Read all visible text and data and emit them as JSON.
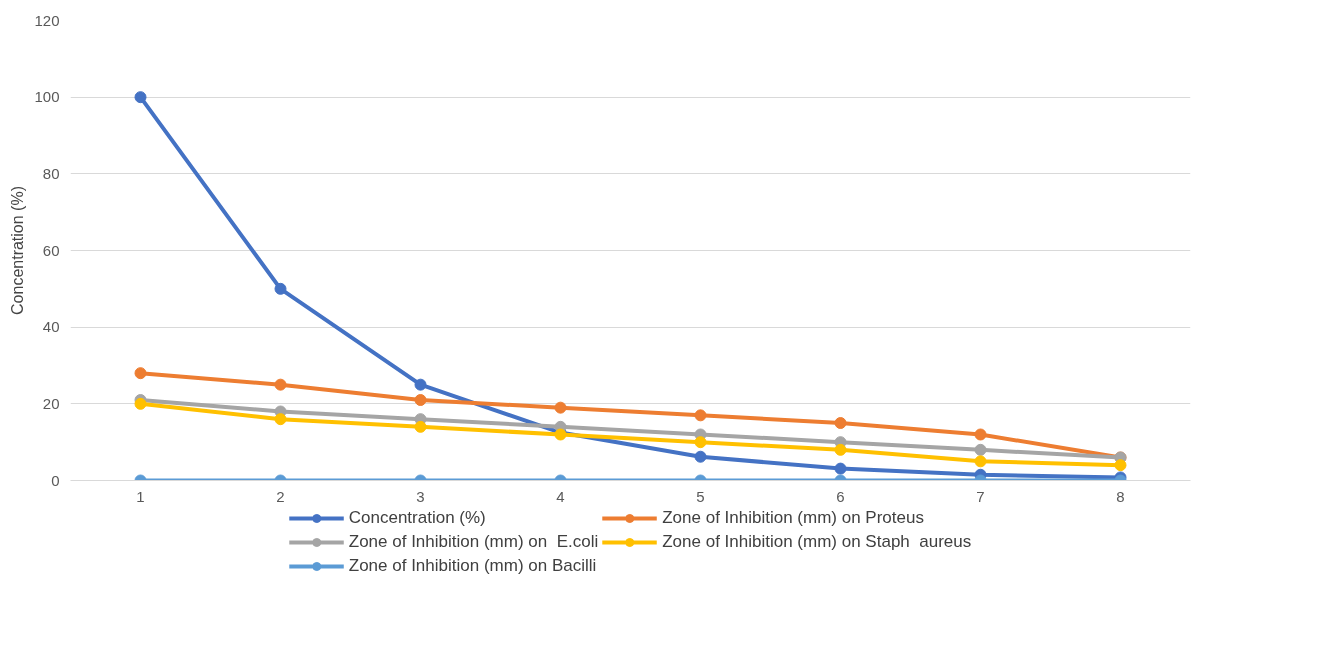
{
  "chart_data": {
    "type": "line",
    "ylabel": "Concentration (%)",
    "categories": [
      "1",
      "2",
      "3",
      "4",
      "5",
      "6",
      "7",
      "8"
    ],
    "series": [
      {
        "name": "Concentration (%)",
        "color": "#4472c4",
        "values": [
          100,
          50,
          25,
          12.5,
          6.2,
          3.1,
          1.5,
          0.8
        ]
      },
      {
        "name": "Zone of Inhibition (mm) on Proteus",
        "color": "#ed7d31",
        "values": [
          28,
          25,
          21,
          19,
          17,
          15,
          12,
          6
        ]
      },
      {
        "name": "Zone of Inhibition (mm) on  E.coli",
        "color": "#a5a5a5",
        "values": [
          21,
          18,
          16,
          14,
          12,
          10,
          8,
          6
        ]
      },
      {
        "name": "Zone of Inhibition (mm) on Staph  aureus",
        "color": "#ffc000",
        "values": [
          20,
          16,
          14,
          12,
          10,
          8,
          5,
          4
        ]
      },
      {
        "name": "Zone of Inhibition (mm) on Bacilli",
        "color": "#5b9bd5",
        "values": [
          0,
          0,
          0,
          0,
          0,
          0,
          0,
          0
        ]
      }
    ],
    "ylim": [
      0,
      120
    ],
    "yticks": [
      0,
      20,
      40,
      60,
      80,
      100,
      120
    ],
    "grid": "y",
    "legend": "bottom",
    "marker": "circle",
    "line_style": "solid"
  }
}
